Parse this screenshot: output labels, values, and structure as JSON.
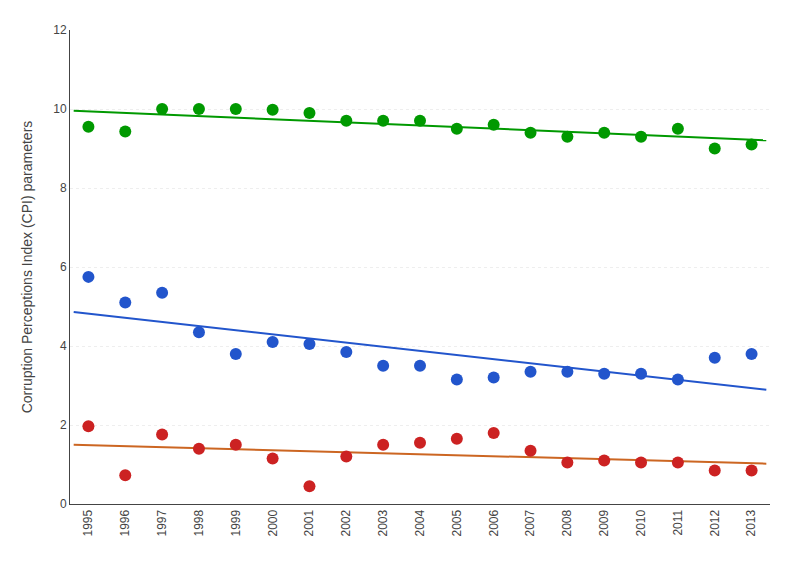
{
  "chart_data": {
    "type": "scatter",
    "y_label": "Corruption Perceptions Index (CPI) parameters",
    "x": [
      1995,
      1996,
      1997,
      1998,
      1999,
      2000,
      2001,
      2002,
      2003,
      2004,
      2005,
      2006,
      2007,
      2008,
      2009,
      2010,
      2011,
      2012,
      2013
    ],
    "series": [
      {
        "type": "line",
        "color": "#009900",
        "line_style": "solid",
        "x": [
          1994.6,
          2013.4
        ],
        "values": [
          9.9583,
          9.2059
        ]
      },
      {
        "type": "line",
        "color": "#2255cc",
        "line_style": "solid",
        "x": [
          1994.6,
          2013.4
        ],
        "values": [
          4.8608,
          2.8918
        ]
      },
      {
        "type": "line",
        "color": "#cc6622",
        "line_style": "solid",
        "x": [
          1994.6,
          2013.4
        ],
        "values": [
          1.5008,
          1.0213
        ]
      },
      {
        "type": "scatter",
        "color": "#009900",
        "marker": "circle",
        "values": [
          9.55,
          9.43,
          10.0,
          10.0,
          10.0,
          9.98,
          9.9,
          9.7,
          9.7,
          9.7,
          9.5,
          9.6,
          9.4,
          9.3,
          9.4,
          9.3,
          9.5,
          9.0,
          9.1
        ]
      },
      {
        "type": "scatter",
        "color": "#2255cc",
        "marker": "circle",
        "values": [
          5.75,
          5.1,
          5.35,
          4.35,
          3.8,
          4.1,
          4.05,
          3.85,
          3.5,
          3.5,
          3.15,
          3.2,
          3.35,
          3.35,
          3.3,
          3.3,
          3.15,
          3.7,
          3.8
        ]
      },
      {
        "type": "scatter",
        "color": "#cc2222",
        "marker": "circle",
        "values": [
          1.97,
          0.73,
          1.76,
          1.4,
          1.5,
          1.15,
          0.45,
          1.2,
          1.5,
          1.55,
          1.65,
          1.8,
          1.35,
          1.05,
          1.1,
          1.05,
          1.05,
          0.85,
          0.85
        ]
      }
    ],
    "xlim": [
      1994.5,
      2013.5
    ],
    "xticks": [
      1995,
      1996,
      1997,
      1998,
      1999,
      2000,
      2001,
      2002,
      2003,
      2004,
      2005,
      2006,
      2007,
      2008,
      2009,
      2010,
      2011,
      2012,
      2013
    ],
    "ylim": [
      0,
      12
    ],
    "yticks": [
      0,
      2,
      4,
      6,
      8,
      10,
      12
    ],
    "grid": "y"
  }
}
